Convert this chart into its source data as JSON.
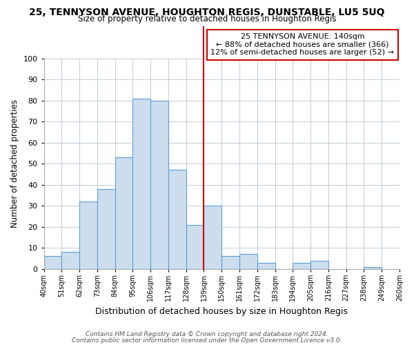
{
  "title": "25, TENNYSON AVENUE, HOUGHTON REGIS, DUNSTABLE, LU5 5UQ",
  "subtitle": "Size of property relative to detached houses in Houghton Regis",
  "xlabel": "Distribution of detached houses by size in Houghton Regis",
  "ylabel": "Number of detached properties",
  "bar_color": "#ccdded",
  "bar_edge_color": "#5a9fd4",
  "bins": [
    40,
    51,
    62,
    73,
    84,
    95,
    106,
    117,
    128,
    139,
    150,
    161,
    172,
    183,
    194,
    205,
    216,
    227,
    238,
    249,
    260
  ],
  "counts": [
    6,
    8,
    32,
    38,
    53,
    81,
    80,
    47,
    21,
    30,
    6,
    7,
    3,
    0,
    3,
    4,
    0,
    0,
    1,
    0
  ],
  "reference_line_x": 139,
  "reference_line_color": "#cc0000",
  "annotation_line1": "25 TENNYSON AVENUE: 140sqm",
  "annotation_line2": "← 88% of detached houses are smaller (366)",
  "annotation_line3": "12% of semi-detached houses are larger (52) →",
  "annotation_box_color": "#ffffff",
  "annotation_box_edge": "#cc0000",
  "ylim": [
    0,
    100
  ],
  "yticks": [
    0,
    10,
    20,
    30,
    40,
    50,
    60,
    70,
    80,
    90,
    100
  ],
  "tick_labels": [
    "40sqm",
    "51sqm",
    "62sqm",
    "73sqm",
    "84sqm",
    "95sqm",
    "106sqm",
    "117sqm",
    "128sqm",
    "139sqm",
    "150sqm",
    "161sqm",
    "172sqm",
    "183sqm",
    "194sqm",
    "205sqm",
    "216sqm",
    "227sqm",
    "238sqm",
    "249sqm",
    "260sqm"
  ],
  "footer_line1": "Contains HM Land Registry data © Crown copyright and database right 2024.",
  "footer_line2": "Contains public sector information licensed under the Open Government Licence v3.0.",
  "background_color": "#ffffff",
  "grid_color": "#c0cdd8"
}
